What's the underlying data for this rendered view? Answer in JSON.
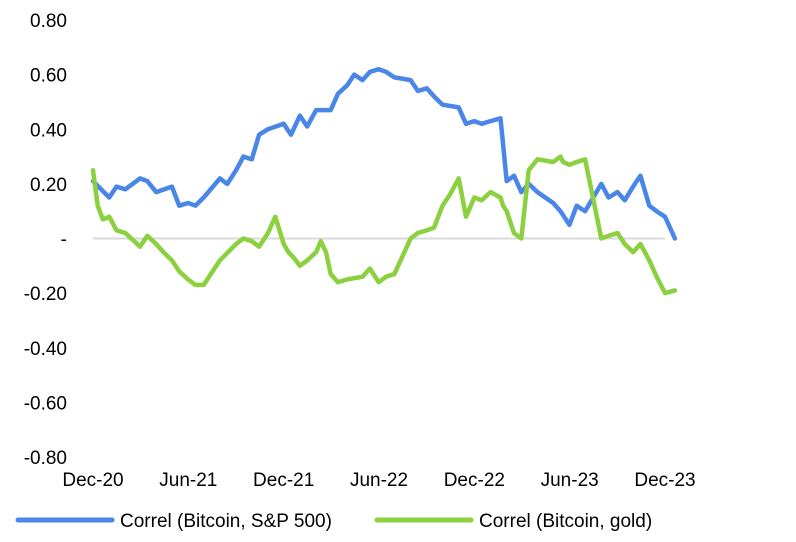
{
  "chart_data": {
    "type": "line",
    "x_ticks": [
      "Dec-20",
      "Jun-21",
      "Dec-21",
      "Jun-22",
      "Dec-22",
      "Jun-23",
      "Dec-23"
    ],
    "y_ticks": [
      "0.80",
      "0.60",
      "0.40",
      "0.20",
      "-",
      "-0.20",
      "-0.40",
      "-0.60",
      "-0.80"
    ],
    "ylim": [
      -0.8,
      0.8
    ],
    "xlim": [
      "2020-12",
      "2023-12"
    ],
    "grid": false,
    "zero_line": true,
    "legend_position": "bottom",
    "series": [
      {
        "name": "Correl (Bitcoin, S&P 500)",
        "color": "#4a86e8",
        "x": [
          "2020-12-01",
          "2021-01-01",
          "2021-01-15",
          "2021-02-01",
          "2021-03-01",
          "2021-03-15",
          "2021-04-01",
          "2021-05-01",
          "2021-05-15",
          "2021-06-01",
          "2021-06-15",
          "2021-07-01",
          "2021-08-01",
          "2021-08-15",
          "2021-09-01",
          "2021-09-15",
          "2021-10-01",
          "2021-10-15",
          "2021-11-01",
          "2021-12-01",
          "2021-12-15",
          "2022-01-01",
          "2022-01-15",
          "2022-02-01",
          "2022-03-01",
          "2022-03-15",
          "2022-04-01",
          "2022-04-15",
          "2022-05-01",
          "2022-05-15",
          "2022-06-01",
          "2022-06-15",
          "2022-07-01",
          "2022-08-01",
          "2022-08-15",
          "2022-09-01",
          "2022-09-15",
          "2022-10-01",
          "2022-11-01",
          "2022-11-15",
          "2022-12-01",
          "2022-12-15",
          "2023-01-01",
          "2023-01-20",
          "2023-02-01",
          "2023-02-15",
          "2023-03-01",
          "2023-03-15",
          "2023-04-01",
          "2023-05-01",
          "2023-05-15",
          "2023-06-01",
          "2023-06-15",
          "2023-07-01",
          "2023-08-01",
          "2023-08-15",
          "2023-09-01",
          "2023-09-15",
          "2023-10-01",
          "2023-10-15",
          "2023-11-01",
          "2023-11-15",
          "2023-12-01",
          "2023-12-20"
        ],
        "values": [
          0.21,
          0.15,
          0.19,
          0.18,
          0.22,
          0.21,
          0.17,
          0.19,
          0.12,
          0.13,
          0.12,
          0.15,
          0.22,
          0.2,
          0.25,
          0.3,
          0.29,
          0.38,
          0.4,
          0.42,
          0.38,
          0.45,
          0.41,
          0.47,
          0.47,
          0.53,
          0.56,
          0.6,
          0.58,
          0.61,
          0.62,
          0.61,
          0.59,
          0.58,
          0.54,
          0.55,
          0.52,
          0.49,
          0.48,
          0.42,
          0.43,
          0.42,
          0.43,
          0.44,
          0.21,
          0.23,
          0.17,
          0.2,
          0.17,
          0.13,
          0.1,
          0.05,
          0.12,
          0.1,
          0.2,
          0.15,
          0.17,
          0.14,
          0.19,
          0.23,
          0.12,
          0.1,
          0.08,
          0.0
        ]
      },
      {
        "name": "Correl (Bitcoin, gold)",
        "color": "#8bd03f",
        "x": [
          "2020-12-01",
          "2020-12-10",
          "2020-12-20",
          "2021-01-01",
          "2021-01-15",
          "2021-02-01",
          "2021-03-01",
          "2021-03-15",
          "2021-04-01",
          "2021-04-15",
          "2021-05-01",
          "2021-05-15",
          "2021-06-01",
          "2021-06-15",
          "2021-07-01",
          "2021-08-01",
          "2021-09-01",
          "2021-09-15",
          "2021-10-01",
          "2021-10-15",
          "2021-11-01",
          "2021-11-15",
          "2021-12-01",
          "2021-12-10",
          "2021-12-20",
          "2022-01-01",
          "2022-01-15",
          "2022-02-01",
          "2022-02-10",
          "2022-02-20",
          "2022-03-01",
          "2022-03-15",
          "2022-04-01",
          "2022-05-01",
          "2022-05-15",
          "2022-06-01",
          "2022-06-15",
          "2022-07-01",
          "2022-08-01",
          "2022-08-15",
          "2022-09-01",
          "2022-09-15",
          "2022-10-01",
          "2022-10-15",
          "2022-11-01",
          "2022-11-15",
          "2022-12-01",
          "2022-12-15",
          "2023-01-01",
          "2023-01-20",
          "2023-01-25",
          "2023-02-01",
          "2023-02-15",
          "2023-03-01",
          "2023-03-15",
          "2023-04-01",
          "2023-05-01",
          "2023-05-15",
          "2023-05-20",
          "2023-06-01",
          "2023-06-15",
          "2023-07-01",
          "2023-08-01",
          "2023-08-15",
          "2023-09-01",
          "2023-09-15",
          "2023-10-01",
          "2023-10-15",
          "2023-11-01",
          "2023-11-15",
          "2023-12-01",
          "2023-12-20"
        ],
        "values": [
          0.25,
          0.12,
          0.07,
          0.08,
          0.03,
          0.02,
          -0.03,
          0.01,
          -0.02,
          -0.05,
          -0.08,
          -0.12,
          -0.15,
          -0.17,
          -0.17,
          -0.08,
          -0.02,
          0.0,
          -0.01,
          -0.03,
          0.02,
          0.08,
          -0.02,
          -0.05,
          -0.07,
          -0.1,
          -0.08,
          -0.05,
          -0.01,
          -0.05,
          -0.13,
          -0.16,
          -0.15,
          -0.14,
          -0.11,
          -0.16,
          -0.14,
          -0.13,
          0.0,
          0.02,
          0.03,
          0.04,
          0.12,
          0.16,
          0.22,
          0.08,
          0.15,
          0.14,
          0.17,
          0.15,
          0.12,
          0.1,
          0.02,
          0.0,
          0.25,
          0.29,
          0.28,
          0.3,
          0.28,
          0.27,
          0.28,
          0.29,
          0.0,
          0.01,
          0.02,
          -0.02,
          -0.05,
          -0.02,
          -0.08,
          -0.14,
          -0.2,
          -0.19
        ]
      }
    ]
  }
}
